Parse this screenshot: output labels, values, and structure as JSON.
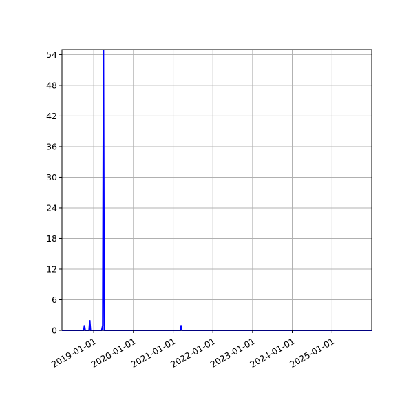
{
  "chart_data": {
    "type": "line",
    "title": "",
    "xlabel": "",
    "ylabel": "",
    "x_axis_type": "date",
    "xlim": [
      "2018-03-15",
      "2026-01-01"
    ],
    "ylim": [
      0,
      55
    ],
    "x_ticks": [
      "2019-01-01",
      "2020-01-01",
      "2021-01-01",
      "2022-01-01",
      "2023-01-01",
      "2024-01-01",
      "2025-01-01"
    ],
    "y_ticks": [
      0,
      6,
      12,
      18,
      24,
      30,
      36,
      42,
      48,
      54
    ],
    "grid": true,
    "legend": false,
    "series": [
      {
        "color": "#0000ff",
        "points": [
          {
            "x": "2018-03-15",
            "y": 0
          },
          {
            "x": "2018-10-01",
            "y": 0
          },
          {
            "x": "2018-10-08",
            "y": 1
          },
          {
            "x": "2018-10-15",
            "y": 0
          },
          {
            "x": "2018-11-19",
            "y": 0
          },
          {
            "x": "2018-11-26",
            "y": 2
          },
          {
            "x": "2018-12-03",
            "y": 0
          },
          {
            "x": "2019-03-15",
            "y": 0
          },
          {
            "x": "2019-03-25",
            "y": 1
          },
          {
            "x": "2019-04-01",
            "y": 55
          },
          {
            "x": "2019-04-08",
            "y": 0
          },
          {
            "x": "2021-03-08",
            "y": 0
          },
          {
            "x": "2021-03-15",
            "y": 1
          },
          {
            "x": "2021-03-22",
            "y": 0
          },
          {
            "x": "2026-01-01",
            "y": 0
          }
        ]
      }
    ]
  }
}
